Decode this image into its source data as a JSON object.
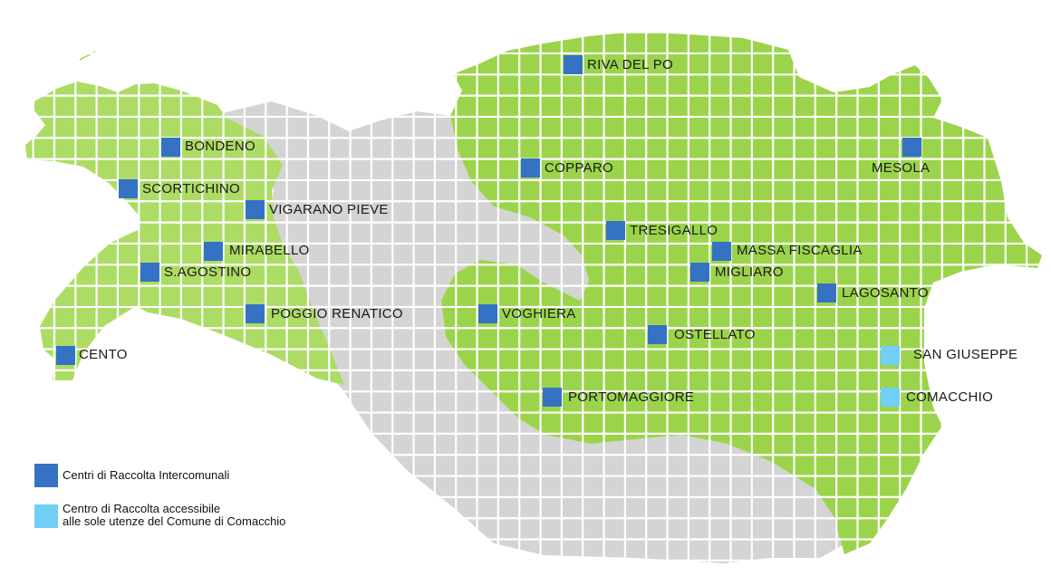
{
  "map": {
    "colors": {
      "west_area": "#acdc64",
      "east_area": "#9bd44b",
      "other_area": "#d4d4d4",
      "grid": "#ffffff",
      "intercomunale": "#3572c4",
      "comacchio_only": "#72d0f7"
    },
    "markers": [
      {
        "name": "RIVA DEL PO",
        "type": "intercomunale"
      },
      {
        "name": "BONDENO",
        "type": "intercomunale"
      },
      {
        "name": "SCORTICHINO",
        "type": "intercomunale"
      },
      {
        "name": "VIGARANO PIEVE",
        "type": "intercomunale"
      },
      {
        "name": "MIRABELLO",
        "type": "intercomunale"
      },
      {
        "name": "S.AGOSTINO",
        "type": "intercomunale"
      },
      {
        "name": "POGGIO RENATICO",
        "type": "intercomunale"
      },
      {
        "name": "CENTO",
        "type": "intercomunale"
      },
      {
        "name": "COPPARO",
        "type": "intercomunale"
      },
      {
        "name": "MESOLA",
        "type": "intercomunale"
      },
      {
        "name": "TRESIGALLO",
        "type": "intercomunale"
      },
      {
        "name": "MASSA FISCAGLIA",
        "type": "intercomunale"
      },
      {
        "name": "MIGLIARO",
        "type": "intercomunale"
      },
      {
        "name": "LAGOSANTO",
        "type": "intercomunale"
      },
      {
        "name": "VOGHIERA",
        "type": "intercomunale"
      },
      {
        "name": "OSTELLATO",
        "type": "intercomunale"
      },
      {
        "name": "SAN GIUSEPPE",
        "type": "comacchio_only"
      },
      {
        "name": "PORTOMAGGIORE",
        "type": "intercomunale"
      },
      {
        "name": "COMACCHIO",
        "type": "comacchio_only"
      }
    ]
  },
  "legend": {
    "intercomunale": "Centri di Raccolta Intercomunali",
    "comacchio_only_line1": "Centro di Raccolta accessibile",
    "comacchio_only_line2": "alle sole utenze del Comune di Comacchio"
  }
}
